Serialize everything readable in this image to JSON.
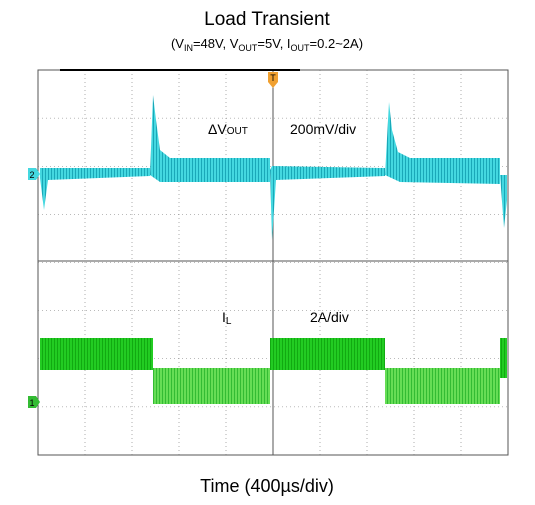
{
  "header": {
    "title": "Load Transient",
    "subtitle": [
      "(V",
      "IN",
      "=48V, V",
      "OUT",
      "=5V, I",
      "OUT",
      "=0.2~2A)"
    ]
  },
  "channels": [
    {
      "label": [
        "ΔV",
        "OUT"
      ],
      "scale": "200mV/div",
      "marker": "2"
    },
    {
      "label": [
        "I",
        "L"
      ],
      "scale": "2A/div",
      "marker": "1"
    }
  ],
  "trigger": "T",
  "footer": "Time (400µs/div)"
}
